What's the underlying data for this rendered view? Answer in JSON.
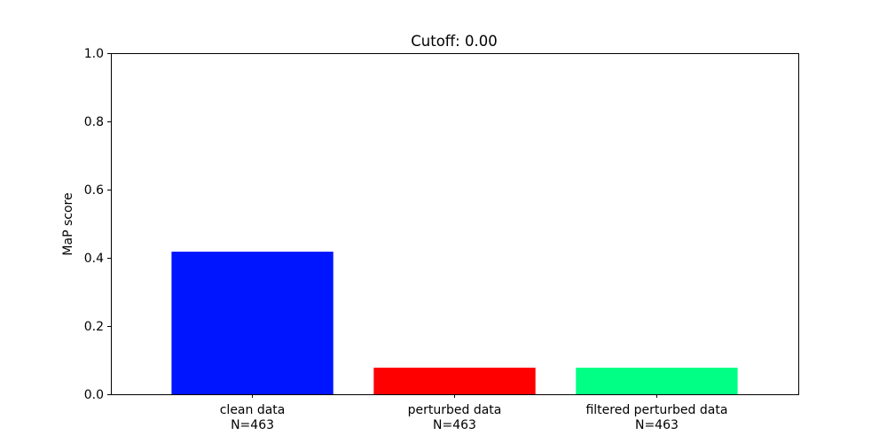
{
  "chart_data": {
    "type": "bar",
    "title": "Cutoff: 0.00",
    "xlabel": "",
    "ylabel": "MaP score",
    "ylim": [
      0,
      1.0
    ],
    "yticks": [
      "0.0",
      "0.2",
      "0.4",
      "0.6",
      "0.8",
      "1.0"
    ],
    "categories": [
      {
        "name": "clean data",
        "n_label": "N=463"
      },
      {
        "name": "perturbed data",
        "n_label": "N=463"
      },
      {
        "name": "filtered perturbed data",
        "n_label": "N=463"
      }
    ],
    "values": [
      0.418,
      0.078,
      0.078
    ],
    "colors": [
      "#0015ff",
      "#ff0000",
      "#00ff84"
    ],
    "grid": false,
    "legend": "none"
  }
}
